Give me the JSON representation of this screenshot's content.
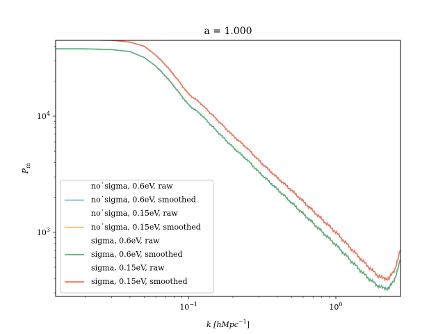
{
  "chart_data": {
    "type": "line",
    "title": "a = 1.000",
    "xlabel": {
      "main": "k [hMpc",
      "sup": "−1",
      "close": "]"
    },
    "ylabel": {
      "main": "P",
      "sub": "m"
    },
    "xscale": "log",
    "yscale": "log",
    "xlim": [
      0.0125,
      2.75
    ],
    "ylim": [
      280,
      45000
    ],
    "x_ticks": [
      {
        "value": 0.1,
        "base": "10",
        "exp": "−1"
      },
      {
        "value": 1,
        "base": "10",
        "exp": "0"
      }
    ],
    "y_ticks": [
      {
        "value": 1000,
        "base": "10",
        "exp": "3"
      },
      {
        "value": 10000,
        "base": "10",
        "exp": "4"
      }
    ],
    "grid": false,
    "legend_position": "lower-left",
    "colors": {
      "no_sigma_0.6eV": "#7eb0d5",
      "no_sigma_0.15eV": "#fdbf6f",
      "sigma_0.6eV": "#5aab79",
      "sigma_0.15eV": "#e7725a"
    },
    "series": [
      {
        "name": "no˙sigma, 0.6eV, raw",
        "key": "no_sigma_0.6eV",
        "style": "raw",
        "x": [],
        "y": []
      },
      {
        "name": "no˙sigma, 0.6eV, smoothed",
        "key": "no_sigma_0.6eV",
        "style": "smoothed",
        "x": [],
        "y": []
      },
      {
        "name": "no˙sigma, 0.15eV, raw",
        "key": "no_sigma_0.15eV",
        "style": "raw",
        "x": [],
        "y": []
      },
      {
        "name": "no˙sigma, 0.15eV, smoothed",
        "key": "no_sigma_0.15eV",
        "style": "smoothed",
        "x": [],
        "y": []
      },
      {
        "name": "sigma, 0.6eV, raw",
        "key": "sigma_0.6eV",
        "style": "raw",
        "x": [],
        "y": []
      },
      {
        "name": "sigma, 0.6eV, smoothed",
        "key": "sigma_0.6eV",
        "style": "smoothed",
        "x": [
          0.0125,
          0.02,
          0.03,
          0.04,
          0.05,
          0.06,
          0.07,
          0.08,
          0.1,
          0.12,
          0.15,
          0.2,
          0.25,
          0.3,
          0.4,
          0.5,
          0.7,
          1.0,
          1.3,
          1.6,
          1.9,
          2.1,
          2.3,
          2.5,
          2.75
        ],
        "y": [
          38000,
          38000,
          37500,
          36000,
          32000,
          27000,
          22000,
          18000,
          12500,
          10500,
          7800,
          5400,
          4200,
          3300,
          2350,
          1800,
          1200,
          780,
          550,
          420,
          350,
          330,
          330,
          390,
          580
        ]
      },
      {
        "name": "sigma, 0.15eV, raw",
        "key": "sigma_0.15eV",
        "style": "raw",
        "x": [],
        "y": []
      },
      {
        "name": "sigma, 0.15eV, smoothed",
        "key": "sigma_0.15eV",
        "style": "smoothed",
        "x": [
          0.0125,
          0.02,
          0.03,
          0.04,
          0.05,
          0.06,
          0.07,
          0.08,
          0.1,
          0.12,
          0.15,
          0.2,
          0.25,
          0.3,
          0.4,
          0.5,
          0.7,
          1.0,
          1.3,
          1.6,
          1.9,
          2.1,
          2.3,
          2.5,
          2.75
        ],
        "y": [
          46000,
          45500,
          45000,
          43500,
          40000,
          33500,
          27500,
          22500,
          15500,
          13000,
          9800,
          6800,
          5300,
          4150,
          2950,
          2300,
          1530,
          1000,
          700,
          530,
          430,
          400,
          400,
          470,
          700
        ]
      }
    ]
  }
}
